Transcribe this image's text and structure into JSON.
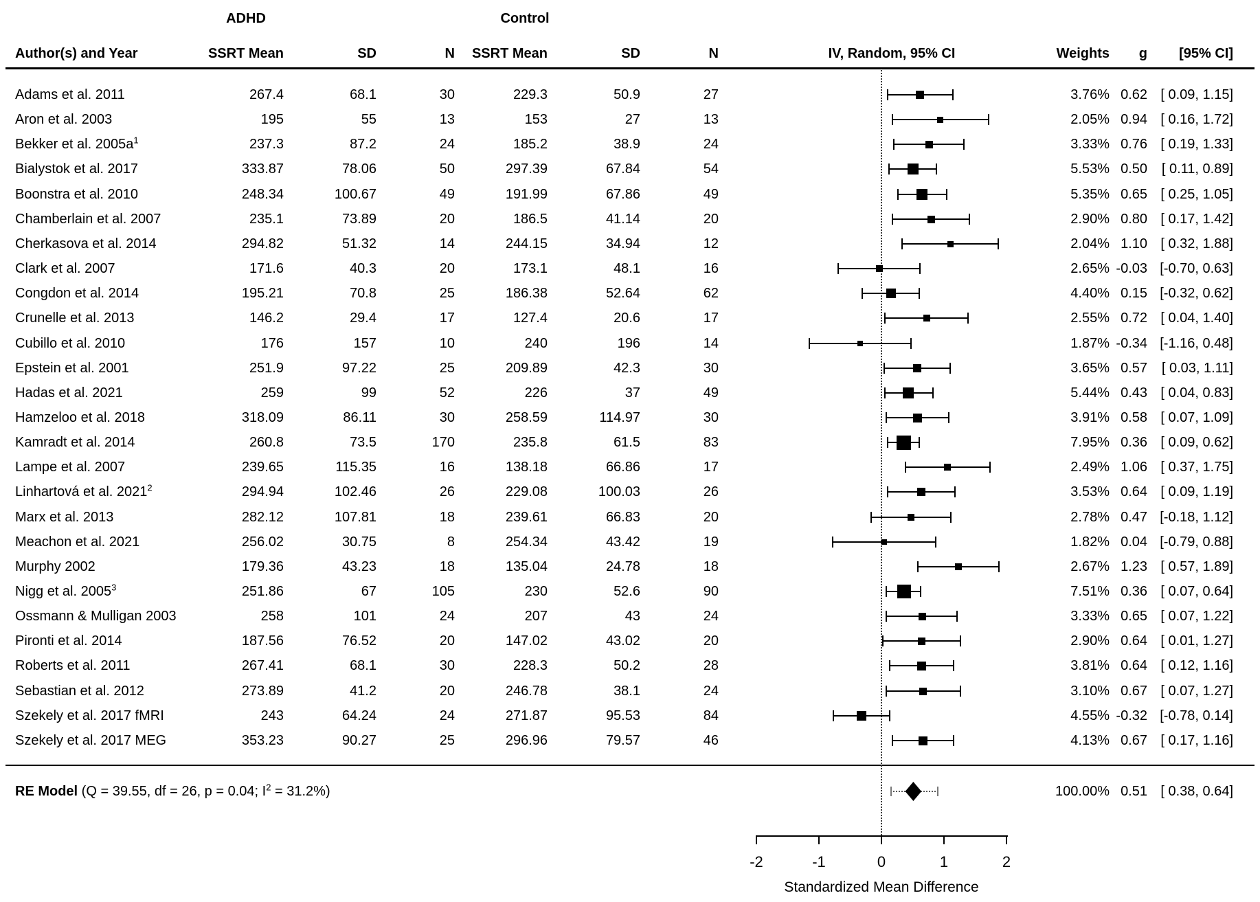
{
  "chart_data": {
    "type": "forest",
    "group_headers": {
      "adhd": "ADHD",
      "control": "Control"
    },
    "column_headers": {
      "author": "Author(s) and Year",
      "mean": "SSRT Mean",
      "sd": "SD",
      "n": "N",
      "plot": "IV, Random, 95% CI",
      "weights": "Weights",
      "g": "g",
      "ci": "[95% CI]"
    },
    "axis": {
      "label": "Standardized Mean Difference",
      "ticks": [
        -2,
        -1,
        0,
        1,
        2
      ],
      "range": [
        -2,
        2
      ]
    },
    "studies": [
      {
        "author": "Adams et al. 2011",
        "sup": "",
        "m1": "267.4",
        "sd1": "68.1",
        "n1": "30",
        "m2": "229.3",
        "sd2": "50.9",
        "n2": "27",
        "w": "3.76%",
        "wv": 3.76,
        "g": "0.62",
        "gv": 0.62,
        "lo": 0.09,
        "hi": 1.15,
        "ci": "[ 0.09, 1.15]"
      },
      {
        "author": "Aron et al. 2003",
        "sup": "",
        "m1": "195",
        "sd1": "55",
        "n1": "13",
        "m2": "153",
        "sd2": "27",
        "n2": "13",
        "w": "2.05%",
        "wv": 2.05,
        "g": "0.94",
        "gv": 0.94,
        "lo": 0.16,
        "hi": 1.72,
        "ci": "[ 0.16, 1.72]"
      },
      {
        "author": "Bekker et al. 2005a",
        "sup": "1",
        "m1": "237.3",
        "sd1": "87.2",
        "n1": "24",
        "m2": "185.2",
        "sd2": "38.9",
        "n2": "24",
        "w": "3.33%",
        "wv": 3.33,
        "g": "0.76",
        "gv": 0.76,
        "lo": 0.19,
        "hi": 1.33,
        "ci": "[ 0.19, 1.33]"
      },
      {
        "author": "Bialystok et al. 2017",
        "sup": "",
        "m1": "333.87",
        "sd1": "78.06",
        "n1": "50",
        "m2": "297.39",
        "sd2": "67.84",
        "n2": "54",
        "w": "5.53%",
        "wv": 5.53,
        "g": "0.50",
        "gv": 0.5,
        "lo": 0.11,
        "hi": 0.89,
        "ci": "[ 0.11, 0.89]"
      },
      {
        "author": "Boonstra et al. 2010",
        "sup": "",
        "m1": "248.34",
        "sd1": "100.67",
        "n1": "49",
        "m2": "191.99",
        "sd2": "67.86",
        "n2": "49",
        "w": "5.35%",
        "wv": 5.35,
        "g": "0.65",
        "gv": 0.65,
        "lo": 0.25,
        "hi": 1.05,
        "ci": "[ 0.25, 1.05]"
      },
      {
        "author": "Chamberlain et al. 2007",
        "sup": "",
        "m1": "235.1",
        "sd1": "73.89",
        "n1": "20",
        "m2": "186.5",
        "sd2": "41.14",
        "n2": "20",
        "w": "2.90%",
        "wv": 2.9,
        "g": "0.80",
        "gv": 0.8,
        "lo": 0.17,
        "hi": 1.42,
        "ci": "[ 0.17, 1.42]"
      },
      {
        "author": "Cherkasova et al. 2014",
        "sup": "",
        "m1": "294.82",
        "sd1": "51.32",
        "n1": "14",
        "m2": "244.15",
        "sd2": "34.94",
        "n2": "12",
        "w": "2.04%",
        "wv": 2.04,
        "g": "1.10",
        "gv": 1.1,
        "lo": 0.32,
        "hi": 1.88,
        "ci": "[ 0.32, 1.88]"
      },
      {
        "author": "Clark et al. 2007",
        "sup": "",
        "m1": "171.6",
        "sd1": "40.3",
        "n1": "20",
        "m2": "173.1",
        "sd2": "48.1",
        "n2": "16",
        "w": "2.65%",
        "wv": 2.65,
        "g": "-0.03",
        "gv": -0.03,
        "lo": -0.7,
        "hi": 0.63,
        "ci": "[-0.70, 0.63]"
      },
      {
        "author": "Congdon et al. 2014",
        "sup": "",
        "m1": "195.21",
        "sd1": "70.8",
        "n1": "25",
        "m2": "186.38",
        "sd2": "52.64",
        "n2": "62",
        "w": "4.40%",
        "wv": 4.4,
        "g": "0.15",
        "gv": 0.15,
        "lo": -0.32,
        "hi": 0.62,
        "ci": "[-0.32, 0.62]"
      },
      {
        "author": "Crunelle et al. 2013",
        "sup": "",
        "m1": "146.2",
        "sd1": "29.4",
        "n1": "17",
        "m2": "127.4",
        "sd2": "20.6",
        "n2": "17",
        "w": "2.55%",
        "wv": 2.55,
        "g": "0.72",
        "gv": 0.72,
        "lo": 0.04,
        "hi": 1.4,
        "ci": "[ 0.04, 1.40]"
      },
      {
        "author": "Cubillo et al. 2010",
        "sup": "",
        "m1": "176",
        "sd1": "157",
        "n1": "10",
        "m2": "240",
        "sd2": "196",
        "n2": "14",
        "w": "1.87%",
        "wv": 1.87,
        "g": "-0.34",
        "gv": -0.34,
        "lo": -1.16,
        "hi": 0.48,
        "ci": "[-1.16, 0.48]"
      },
      {
        "author": "Epstein et al. 2001",
        "sup": "",
        "m1": "251.9",
        "sd1": "97.22",
        "n1": "25",
        "m2": "209.89",
        "sd2": "42.3",
        "n2": "30",
        "w": "3.65%",
        "wv": 3.65,
        "g": "0.57",
        "gv": 0.57,
        "lo": 0.03,
        "hi": 1.11,
        "ci": "[ 0.03, 1.11]"
      },
      {
        "author": "Hadas et al. 2021",
        "sup": "",
        "m1": "259",
        "sd1": "99",
        "n1": "52",
        "m2": "226",
        "sd2": "37",
        "n2": "49",
        "w": "5.44%",
        "wv": 5.44,
        "g": "0.43",
        "gv": 0.43,
        "lo": 0.04,
        "hi": 0.83,
        "ci": "[ 0.04, 0.83]"
      },
      {
        "author": "Hamzeloo et al. 2018",
        "sup": "",
        "m1": "318.09",
        "sd1": "86.11",
        "n1": "30",
        "m2": "258.59",
        "sd2": "114.97",
        "n2": "30",
        "w": "3.91%",
        "wv": 3.91,
        "g": "0.58",
        "gv": 0.58,
        "lo": 0.07,
        "hi": 1.09,
        "ci": "[ 0.07, 1.09]"
      },
      {
        "author": "Kamradt et al. 2014",
        "sup": "",
        "m1": "260.8",
        "sd1": "73.5",
        "n1": "170",
        "m2": "235.8",
        "sd2": "61.5",
        "n2": "83",
        "w": "7.95%",
        "wv": 7.95,
        "g": "0.36",
        "gv": 0.36,
        "lo": 0.09,
        "hi": 0.62,
        "ci": "[ 0.09, 0.62]"
      },
      {
        "author": "Lampe et al. 2007",
        "sup": "",
        "m1": "239.65",
        "sd1": "115.35",
        "n1": "16",
        "m2": "138.18",
        "sd2": "66.86",
        "n2": "17",
        "w": "2.49%",
        "wv": 2.49,
        "g": "1.06",
        "gv": 1.06,
        "lo": 0.37,
        "hi": 1.75,
        "ci": "[ 0.37, 1.75]"
      },
      {
        "author": "Linhartová et al. 2021",
        "sup": "2",
        "m1": "294.94",
        "sd1": "102.46",
        "n1": "26",
        "m2": "229.08",
        "sd2": "100.03",
        "n2": "26",
        "w": "3.53%",
        "wv": 3.53,
        "g": "0.64",
        "gv": 0.64,
        "lo": 0.09,
        "hi": 1.19,
        "ci": "[ 0.09, 1.19]"
      },
      {
        "author": "Marx et al. 2013",
        "sup": "",
        "m1": "282.12",
        "sd1": "107.81",
        "n1": "18",
        "m2": "239.61",
        "sd2": "66.83",
        "n2": "20",
        "w": "2.78%",
        "wv": 2.78,
        "g": "0.47",
        "gv": 0.47,
        "lo": -0.18,
        "hi": 1.12,
        "ci": "[-0.18, 1.12]"
      },
      {
        "author": "Meachon et al. 2021",
        "sup": "",
        "m1": "256.02",
        "sd1": "30.75",
        "n1": "8",
        "m2": "254.34",
        "sd2": "43.42",
        "n2": "19",
        "w": "1.82%",
        "wv": 1.82,
        "g": "0.04",
        "gv": 0.04,
        "lo": -0.79,
        "hi": 0.88,
        "ci": "[-0.79, 0.88]"
      },
      {
        "author": "Murphy 2002",
        "sup": "",
        "m1": "179.36",
        "sd1": "43.23",
        "n1": "18",
        "m2": "135.04",
        "sd2": "24.78",
        "n2": "18",
        "w": "2.67%",
        "wv": 2.67,
        "g": "1.23",
        "gv": 1.23,
        "lo": 0.57,
        "hi": 1.89,
        "ci": "[ 0.57, 1.89]"
      },
      {
        "author": "Nigg et al. 2005",
        "sup": "3",
        "m1": "251.86",
        "sd1": "67",
        "n1": "105",
        "m2": "230",
        "sd2": "52.6",
        "n2": "90",
        "w": "7.51%",
        "wv": 7.51,
        "g": "0.36",
        "gv": 0.36,
        "lo": 0.07,
        "hi": 0.64,
        "ci": "[ 0.07, 0.64]"
      },
      {
        "author": "Ossmann & Mulligan 2003",
        "sup": "",
        "m1": "258",
        "sd1": "101",
        "n1": "24",
        "m2": "207",
        "sd2": "43",
        "n2": "24",
        "w": "3.33%",
        "wv": 3.33,
        "g": "0.65",
        "gv": 0.65,
        "lo": 0.07,
        "hi": 1.22,
        "ci": "[ 0.07, 1.22]"
      },
      {
        "author": "Pironti et al. 2014",
        "sup": "",
        "m1": "187.56",
        "sd1": "76.52",
        "n1": "20",
        "m2": "147.02",
        "sd2": "43.02",
        "n2": "20",
        "w": "2.90%",
        "wv": 2.9,
        "g": "0.64",
        "gv": 0.64,
        "lo": 0.01,
        "hi": 1.27,
        "ci": "[ 0.01, 1.27]"
      },
      {
        "author": "Roberts et al. 2011",
        "sup": "",
        "m1": "267.41",
        "sd1": "68.1",
        "n1": "30",
        "m2": "228.3",
        "sd2": "50.2",
        "n2": "28",
        "w": "3.81%",
        "wv": 3.81,
        "g": "0.64",
        "gv": 0.64,
        "lo": 0.12,
        "hi": 1.16,
        "ci": "[ 0.12, 1.16]"
      },
      {
        "author": "Sebastian et al. 2012",
        "sup": "",
        "m1": "273.89",
        "sd1": "41.2",
        "n1": "20",
        "m2": "246.78",
        "sd2": "38.1",
        "n2": "24",
        "w": "3.10%",
        "wv": 3.1,
        "g": "0.67",
        "gv": 0.67,
        "lo": 0.07,
        "hi": 1.27,
        "ci": "[ 0.07, 1.27]"
      },
      {
        "author": "Szekely et al. 2017 fMRI",
        "sup": "",
        "m1": "243",
        "sd1": "64.24",
        "n1": "24",
        "m2": "271.87",
        "sd2": "95.53",
        "n2": "84",
        "w": "4.55%",
        "wv": 4.55,
        "g": "-0.32",
        "gv": -0.32,
        "lo": -0.78,
        "hi": 0.14,
        "ci": "[-0.78, 0.14]"
      },
      {
        "author": "Szekely et al. 2017 MEG",
        "sup": "",
        "m1": "353.23",
        "sd1": "90.27",
        "n1": "25",
        "m2": "296.96",
        "sd2": "79.57",
        "n2": "46",
        "w": "4.13%",
        "wv": 4.13,
        "g": "0.67",
        "gv": 0.67,
        "lo": 0.17,
        "hi": 1.16,
        "ci": "[ 0.17, 1.16]"
      }
    ],
    "summary": {
      "label": "RE Model",
      "stats_pre": " (Q = 39.55, df = 26, p = 0.04; I",
      "stats_sup": "2",
      "stats_post": " = 31.2%)",
      "w": "100.00%",
      "g": "0.51",
      "gv": 0.51,
      "lo": 0.38,
      "hi": 0.64,
      "ci": "[ 0.38, 0.64]",
      "pi_lo": 0.14,
      "pi_hi": 0.91
    }
  }
}
